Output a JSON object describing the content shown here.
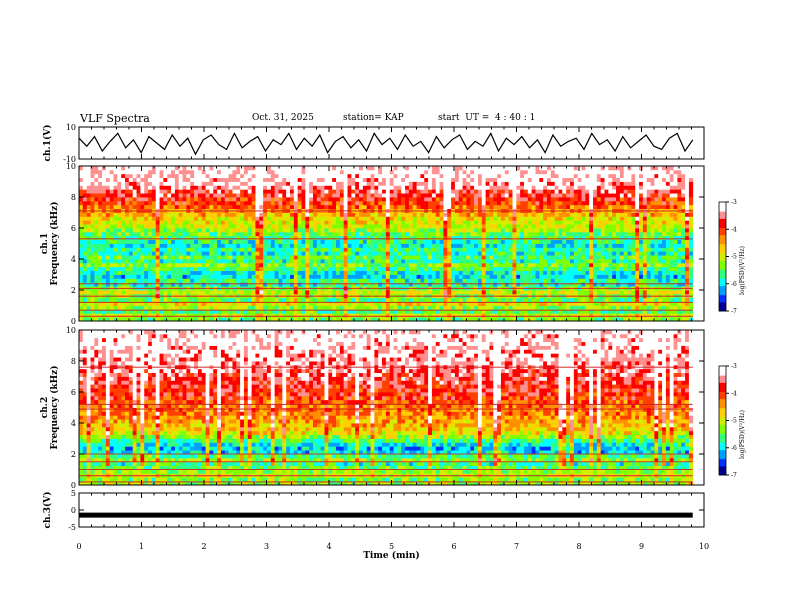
{
  "header": {
    "title": "VLF Spectra",
    "date": "Oct. 31, 2025",
    "station": "station= KAP",
    "start": "start  UT =  4 : 40 : 1"
  },
  "chart_data": [
    {
      "type": "line",
      "name": "ch1-waveform",
      "ylabel": "ch.1(V)",
      "ylim": [
        -10,
        10
      ],
      "yticks": [
        "10",
        "-10"
      ],
      "xlim": [
        0,
        10
      ],
      "x_end": 9.82,
      "y": [
        3,
        -2,
        4,
        -5,
        1,
        6,
        -3,
        2,
        -6,
        4,
        0,
        -4,
        5,
        -2,
        3,
        -7,
        2,
        5,
        -1,
        -4,
        6,
        -3,
        1,
        4,
        -5,
        2,
        -1,
        6,
        -4,
        3,
        -2,
        5,
        -6,
        1,
        4,
        -3,
        2,
        -5,
        6,
        -1,
        3,
        -4,
        5,
        -2,
        1,
        -6,
        4,
        -3,
        2,
        5,
        -4,
        1,
        -2,
        6,
        -5,
        3,
        -1,
        4,
        -3,
        2,
        -6,
        5,
        -2,
        1,
        3,
        -4,
        6,
        -1,
        2,
        -5,
        4,
        -3,
        1,
        5,
        -2,
        -4,
        3,
        6,
        -5,
        2
      ]
    },
    {
      "type": "heatmap",
      "name": "ch1-spectrogram",
      "ylabel_channel": "ch.1",
      "ylabel": "Frequency  (kHz)",
      "ylim": [
        0,
        10
      ],
      "yticks": [
        "0",
        "2",
        "4",
        "6",
        "8",
        "10"
      ],
      "xlim": [
        0,
        10
      ],
      "x_end": 9.82,
      "zlim": [
        -7,
        -3
      ],
      "rows": [
        -5.4,
        -5.0,
        -5.6,
        -5.2,
        -4.9,
        -5.5,
        -5.2,
        -5.0,
        -5.4,
        -5.8,
        -5.7,
        -6.0,
        -5.9,
        -5.6,
        -5.3,
        -5.7,
        -5.5,
        -5.8,
        -5.6,
        -5.9,
        -5.8,
        -5.6,
        -5.4,
        -5.2,
        -5.0,
        -4.9,
        -4.8,
        -4.6,
        -4.4,
        -4.2,
        -4.0,
        -3.9,
        -3.7,
        -3.6,
        -3.4,
        -3.3,
        -3.2,
        -3.2,
        -3.1,
        -3.1
      ],
      "lines_khz": [
        0.3,
        0.7,
        1.2,
        1.6,
        2.1,
        2.4,
        5.3,
        7.1
      ]
    },
    {
      "type": "heatmap",
      "name": "ch2-spectrogram",
      "ylabel_channel": "ch.2",
      "ylabel": "Frequency  (kHz)",
      "ylim": [
        0,
        10
      ],
      "yticks": [
        "0",
        "2",
        "4",
        "6",
        "8",
        "10"
      ],
      "xlim": [
        0,
        10
      ],
      "x_end": 9.82,
      "zlim": [
        -7,
        -3
      ],
      "rows": [
        -5.2,
        -5.4,
        -5.0,
        -5.3,
        -5.5,
        -5.7,
        -5.2,
        -5.6,
        -6.0,
        -6.1,
        -5.9,
        -5.6,
        -5.2,
        -4.9,
        -4.7,
        -4.6,
        -4.5,
        -4.4,
        -4.3,
        -4.3,
        -4.2,
        -4.1,
        -4.0,
        -3.9,
        -3.8,
        -3.8,
        -3.7,
        -3.6,
        -3.6,
        -3.5,
        -3.5,
        -3.4,
        -3.4,
        -3.3,
        -3.3,
        -3.3,
        -3.2,
        -3.2,
        -3.2,
        -3.1
      ],
      "lines_khz": [
        0.2,
        0.6,
        1.0,
        1.5,
        2.0,
        4.9,
        5.2,
        7.6
      ]
    },
    {
      "type": "line",
      "name": "ch3-trace",
      "ylabel": "ch.3(V)",
      "ylim": [
        -5,
        5
      ],
      "yticks": [
        "5",
        "0",
        "-5"
      ],
      "xlim": [
        0,
        10
      ],
      "x_end": 9.82,
      "value": -1.5,
      "xlabel": "Time  (min)",
      "xticks": [
        "0",
        "1",
        "2",
        "3",
        "4",
        "5",
        "6",
        "7",
        "8",
        "9",
        "10"
      ]
    }
  ],
  "colorbar": {
    "zlim": [
      -7,
      -3
    ],
    "ticks": [
      "-3",
      "-4",
      "-5",
      "-6",
      "-7"
    ],
    "label": "log(PSD)(V²/Hz)",
    "colors": [
      "#000090",
      "#0030ff",
      "#00a0ff",
      "#00ffff",
      "#30ff80",
      "#80ff00",
      "#d0f000",
      "#ffd000",
      "#ff9000",
      "#ff4000",
      "#ff0000",
      "#ff9090",
      "#ffffff"
    ]
  }
}
